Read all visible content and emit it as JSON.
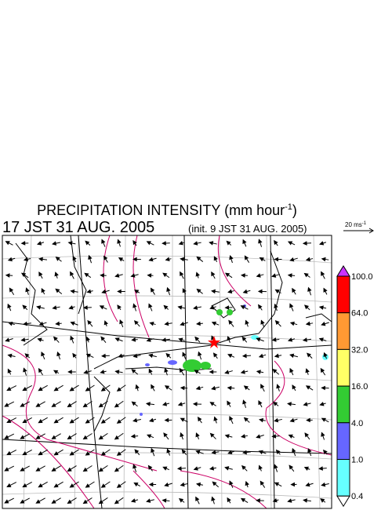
{
  "title": {
    "main": "PRECIPITATION INTENSITY (mm hour",
    "exponent": "-1",
    "close": ")"
  },
  "subtitle": {
    "time": "17 JST 31 AUG. 2005",
    "init": "(init. 9 JST 31 AUG. 2005)"
  },
  "vector_key": {
    "label": "20 ms",
    "exponent": "-1"
  },
  "legend": {
    "over_color": "#cc33ff",
    "under_color": "#ffffff",
    "levels": [
      "100.0",
      "64.0",
      "32.0",
      "16.0",
      "4.0",
      "1.0",
      "0.4"
    ],
    "colors": [
      "#ff0000",
      "#ff9933",
      "#ffff66",
      "#33cc33",
      "#6666ff",
      "#66ffff"
    ]
  }
}
